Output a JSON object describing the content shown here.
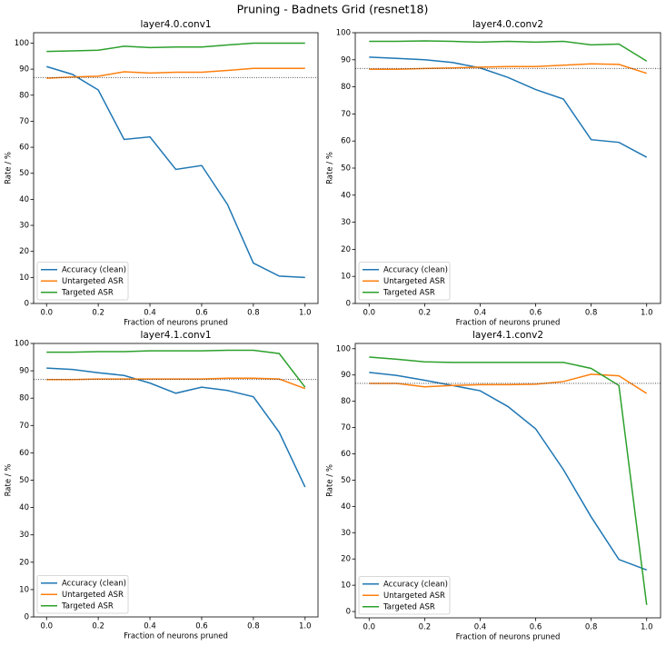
{
  "title": "Pruning - Badnets Grid (resnet18)",
  "chart_data": [
    {
      "type": "line",
      "title": "layer4.0.conv1",
      "xlabel": "Fraction of neurons pruned",
      "ylabel": "Rate / %",
      "x": [
        0,
        0.1,
        0.2,
        0.3,
        0.4,
        0.5,
        0.6,
        0.7,
        0.8,
        0.9,
        1.0
      ],
      "series": [
        {
          "name": "Accuracy (clean)",
          "color": "#1f77b4",
          "values": [
            91,
            88,
            82,
            63,
            64,
            51.5,
            53,
            38,
            15.5,
            10.5,
            10
          ]
        },
        {
          "name": "Untargeted ASR",
          "color": "#ff7f0e",
          "values": [
            86.5,
            87,
            87.3,
            89,
            88.5,
            88.8,
            88.8,
            89.5,
            90.3,
            90.3,
            90.3
          ]
        },
        {
          "name": "Targeted ASR",
          "color": "#2ca02c",
          "values": [
            96.8,
            97,
            97.3,
            98.8,
            98.3,
            98.5,
            98.5,
            99.3,
            100,
            100,
            100
          ]
        }
      ],
      "hline": 86.8,
      "xlim": [
        -0.05,
        1.05
      ],
      "ylim": [
        0,
        104
      ],
      "xticks": [
        {
          "value": 0,
          "label": "0.0"
        },
        {
          "value": 0.2,
          "label": "0.2"
        },
        {
          "value": 0.4,
          "label": "0.4"
        },
        {
          "value": 0.6,
          "label": "0.6"
        },
        {
          "value": 0.8,
          "label": "0.8"
        },
        {
          "value": 1.0,
          "label": "1.0"
        }
      ],
      "yticks": [
        0,
        10,
        20,
        30,
        40,
        50,
        60,
        70,
        80,
        90,
        100
      ],
      "legend": "lower left"
    },
    {
      "type": "line",
      "title": "layer4.0.conv2",
      "xlabel": "Fraction of neurons pruned",
      "ylabel": "Rate / %",
      "x": [
        0,
        0.1,
        0.2,
        0.3,
        0.4,
        0.5,
        0.6,
        0.7,
        0.8,
        0.9,
        1.0
      ],
      "series": [
        {
          "name": "Accuracy (clean)",
          "color": "#1f77b4",
          "values": [
            91,
            90.5,
            90,
            89,
            87,
            83.5,
            79,
            75.5,
            60.5,
            59.5,
            54
          ]
        },
        {
          "name": "Untargeted ASR",
          "color": "#ff7f0e",
          "values": [
            86.5,
            86.5,
            86.8,
            87,
            87.3,
            87.5,
            87.5,
            88,
            88.5,
            88.3,
            85
          ]
        },
        {
          "name": "Targeted ASR",
          "color": "#2ca02c",
          "values": [
            96.8,
            96.8,
            97,
            96.8,
            96.5,
            96.8,
            96.5,
            96.8,
            95.5,
            95.8,
            89.5
          ]
        }
      ],
      "hline": 86.8,
      "xlim": [
        -0.05,
        1.05
      ],
      "ylim": [
        0,
        100
      ],
      "xticks": [
        {
          "value": 0,
          "label": "0.0"
        },
        {
          "value": 0.2,
          "label": "0.2"
        },
        {
          "value": 0.4,
          "label": "0.4"
        },
        {
          "value": 0.6,
          "label": "0.6"
        },
        {
          "value": 0.8,
          "label": "0.8"
        },
        {
          "value": 1.0,
          "label": "1.0"
        }
      ],
      "yticks": [
        0,
        10,
        20,
        30,
        40,
        50,
        60,
        70,
        80,
        90,
        100
      ],
      "legend": "lower left"
    },
    {
      "type": "line",
      "title": "layer4.1.conv1",
      "xlabel": "Fraction of neurons pruned",
      "ylabel": "Rate / %",
      "x": [
        0,
        0.1,
        0.2,
        0.3,
        0.4,
        0.5,
        0.6,
        0.7,
        0.8,
        0.9,
        1.0
      ],
      "series": [
        {
          "name": "Accuracy (clean)",
          "color": "#1f77b4",
          "values": [
            91,
            90.5,
            89.3,
            88.3,
            85.5,
            81.8,
            84,
            82.8,
            80.5,
            67.5,
            47.5
          ]
        },
        {
          "name": "Untargeted ASR",
          "color": "#ff7f0e",
          "values": [
            86.8,
            86.8,
            87,
            87,
            87,
            87,
            87,
            87.3,
            87.3,
            87,
            83.5
          ]
        },
        {
          "name": "Targeted ASR",
          "color": "#2ca02c",
          "values": [
            96.8,
            96.8,
            97,
            97,
            97.3,
            97.3,
            97.3,
            97.5,
            97.5,
            96.3,
            84
          ]
        }
      ],
      "hline": 86.8,
      "xlim": [
        -0.05,
        1.05
      ],
      "ylim": [
        0,
        100
      ],
      "xticks": [
        {
          "value": 0,
          "label": "0.0"
        },
        {
          "value": 0.2,
          "label": "0.2"
        },
        {
          "value": 0.4,
          "label": "0.4"
        },
        {
          "value": 0.6,
          "label": "0.6"
        },
        {
          "value": 0.8,
          "label": "0.8"
        },
        {
          "value": 1.0,
          "label": "1.0"
        }
      ],
      "yticks": [
        0,
        10,
        20,
        30,
        40,
        50,
        60,
        70,
        80,
        90,
        100
      ],
      "legend": "lower left"
    },
    {
      "type": "line",
      "title": "layer4.1.conv2",
      "xlabel": "Fraction of neurons pruned",
      "ylabel": "Rate / %",
      "x": [
        0,
        0.1,
        0.2,
        0.3,
        0.4,
        0.5,
        0.6,
        0.7,
        0.8,
        0.9,
        1.0
      ],
      "series": [
        {
          "name": "Accuracy (clean)",
          "color": "#1f77b4",
          "values": [
            91,
            89.8,
            88,
            86,
            84,
            78,
            69.5,
            54,
            36,
            19.8,
            15.8
          ]
        },
        {
          "name": "Untargeted ASR",
          "color": "#ff7f0e",
          "values": [
            86.8,
            86.8,
            85.5,
            86,
            86.3,
            86.3,
            86.5,
            87.5,
            90.3,
            89.7,
            83
          ]
        },
        {
          "name": "Targeted ASR",
          "color": "#2ca02c",
          "values": [
            96.8,
            96,
            95,
            94.8,
            94.8,
            94.8,
            94.8,
            94.8,
            92.5,
            86,
            2.5
          ]
        }
      ],
      "hline": 86.8,
      "xlim": [
        -0.05,
        1.05
      ],
      "ylim": [
        -2.4,
        102
      ],
      "xticks": [
        {
          "value": 0,
          "label": "0.0"
        },
        {
          "value": 0.2,
          "label": "0.2"
        },
        {
          "value": 0.4,
          "label": "0.4"
        },
        {
          "value": 0.6,
          "label": "0.6"
        },
        {
          "value": 0.8,
          "label": "0.8"
        },
        {
          "value": 1.0,
          "label": "1.0"
        }
      ],
      "yticks": [
        0,
        10,
        20,
        30,
        40,
        50,
        60,
        70,
        80,
        90,
        100
      ],
      "legend": "lower left"
    }
  ]
}
